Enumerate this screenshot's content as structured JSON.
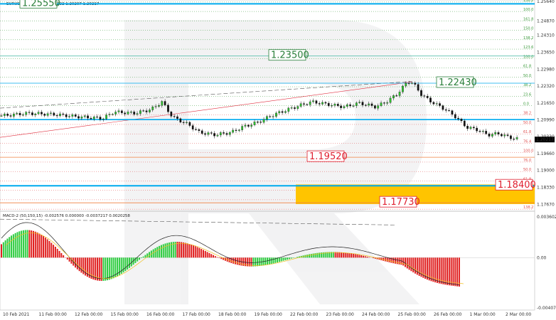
{
  "chart_data": [
    {
      "type": "candlestick",
      "header": "EURUSD,H4  1.20232 1.20232 1.20207 1.20217",
      "x_ticks": [
        "10 Feb 2021",
        "11 Feb 00:00",
        "12 Feb 00:00",
        "15 Feb 00:00",
        "16 Feb 00:00",
        "17 Feb 00:00",
        "18 Feb 00:00",
        "19 Feb 00:00",
        "22 Feb 00:00",
        "23 Feb 00:00",
        "24 Feb 00:00",
        "25 Feb 00:00",
        "26 Feb 00:00",
        "1 Mar 00:00",
        "2 Mar 00:00"
      ],
      "y_ticks": [
        1.2564,
        1.2487,
        1.2431,
        1.2365,
        1.2298,
        1.2232,
        1.2165,
        1.2099,
        1.2033,
        1.1966,
        1.19,
        1.1833,
        1.1767
      ],
      "ylim": [
        1.174,
        1.257
      ],
      "current_price": "1.20217",
      "close_path": [
        [
          0,
          1.2115
        ],
        [
          0.05,
          1.2125
        ],
        [
          0.1,
          1.212
        ],
        [
          0.15,
          1.211
        ],
        [
          0.19,
          1.2105
        ],
        [
          0.21,
          1.213
        ],
        [
          0.25,
          1.2125
        ],
        [
          0.28,
          1.214
        ],
        [
          0.3,
          1.217
        ],
        [
          0.32,
          1.211
        ],
        [
          0.35,
          1.208
        ],
        [
          0.37,
          1.205
        ],
        [
          0.4,
          1.204
        ],
        [
          0.43,
          1.205
        ],
        [
          0.45,
          1.207
        ],
        [
          0.48,
          1.209
        ],
        [
          0.51,
          1.212
        ],
        [
          0.55,
          1.215
        ],
        [
          0.58,
          1.217
        ],
        [
          0.61,
          1.216
        ],
        [
          0.64,
          1.215
        ],
        [
          0.67,
          1.2165
        ],
        [
          0.7,
          1.215
        ],
        [
          0.72,
          1.217
        ],
        [
          0.74,
          1.22
        ],
        [
          0.76,
          1.225
        ],
        [
          0.77,
          1.2243
        ],
        [
          0.785,
          1.22
        ],
        [
          0.8,
          1.2175
        ],
        [
          0.83,
          1.214
        ],
        [
          0.85,
          1.211
        ],
        [
          0.87,
          1.207
        ],
        [
          0.89,
          1.206
        ],
        [
          0.91,
          1.204
        ],
        [
          0.93,
          1.2045
        ],
        [
          0.95,
          1.203
        ],
        [
          0.97,
          1.2022
        ]
      ],
      "levels": [
        {
          "label": "1.25550",
          "value": 1.2555,
          "color": "#2a7f3a",
          "line": "#00aaee"
        },
        {
          "label": "1.23500",
          "value": 1.235,
          "color": "#2a7f3a",
          "line": "#40b8a0"
        },
        {
          "label": "1.22430",
          "value": 1.2243,
          "color": "#2a7f3a",
          "line": "#00aaee"
        },
        {
          "label": "1.19520",
          "value": 1.1952,
          "color": "#e02030",
          "line": "#f08040"
        },
        {
          "label": "1.18400",
          "value": 1.184,
          "color": "#e02030",
          "line": "#00aaee"
        },
        {
          "label": "1.17730",
          "value": 1.1773,
          "color": "#e02030",
          "line": "#f08040"
        }
      ],
      "fib_labels": [
        "138.2",
        "100.0",
        "161.8",
        "150.0",
        "138.2",
        "123.6",
        "100.0",
        "61.8",
        "50.0",
        "38.2",
        "23.6",
        "0.0",
        "38.2",
        "50.0",
        "61.8",
        "76.4",
        "100.0",
        "76.0",
        "50.0",
        "61.8",
        "76.0",
        "161.8",
        "138.2"
      ]
    },
    {
      "type": "histogram",
      "header": "MACD-2 (50,150,15) -0.002576 0.000000 -0.0037217 0.0020258",
      "y_ticks": [
        "0.0036029",
        "0.00",
        "-0.0040705"
      ],
      "ylim": [
        -0.0045,
        0.0038
      ]
    }
  ]
}
